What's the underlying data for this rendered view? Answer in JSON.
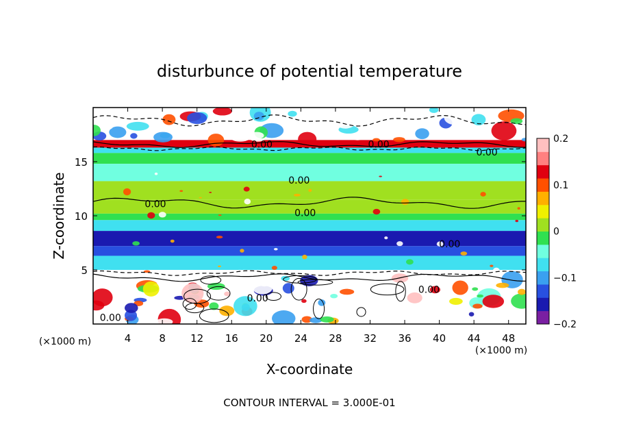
{
  "chart_data": {
    "type": "heatmap",
    "title": "disturbunce of potential temperature",
    "xlabel": "X-coordinate",
    "ylabel": "Z-coordinate",
    "x_unit_label": "(×1000 m)",
    "y_unit_label": "(×1000 m)",
    "xlim": [
      0,
      50
    ],
    "ylim": [
      0,
      20
    ],
    "x_ticks": [
      4,
      8,
      12,
      16,
      20,
      24,
      28,
      32,
      36,
      40,
      44,
      48
    ],
    "y_ticks": [
      5,
      10,
      15
    ],
    "colorbar": {
      "range": [
        -0.2,
        0.2
      ],
      "tick_labels": [
        {
          "value": 0.2,
          "label": "0.2"
        },
        {
          "value": 0.1,
          "label": "0.1"
        },
        {
          "value": 0.0,
          "label": "0"
        },
        {
          "value": -0.1,
          "label": "−0.1"
        },
        {
          "value": -0.2,
          "label": "−0.2"
        }
      ],
      "colors": [
        "#7a1fa2",
        "#1a1ab0",
        "#2850e0",
        "#3aa0f0",
        "#40e0f0",
        "#70ffe0",
        "#30e050",
        "#a0e020",
        "#f0f000",
        "#ffb000",
        "#ff5000",
        "#e00010",
        "#ff8080",
        "#ffc0c0"
      ]
    },
    "contour_labels": [
      {
        "x": 19.5,
        "y": 16.6,
        "label": "0.00"
      },
      {
        "x": 33.0,
        "y": 16.6,
        "label": "0.00"
      },
      {
        "x": 45.5,
        "y": 15.9,
        "label": "0.00"
      },
      {
        "x": 23.8,
        "y": 13.3,
        "label": "0.00"
      },
      {
        "x": 7.2,
        "y": 11.1,
        "label": "0.00"
      },
      {
        "x": 24.5,
        "y": 10.3,
        "label": "0.00"
      },
      {
        "x": 41.2,
        "y": 7.4,
        "label": "0.00"
      },
      {
        "x": 38.8,
        "y": 3.2,
        "label": "0.00"
      },
      {
        "x": 19.0,
        "y": 2.4,
        "label": "0.00"
      },
      {
        "x": 2.0,
        "y": 0.6,
        "label": "0.00"
      }
    ],
    "bands": [
      {
        "z": [
          19.5,
          20.0
        ],
        "value": 0.0
      },
      {
        "z": [
          17.0,
          19.5
        ],
        "value": 0.0
      },
      {
        "z": [
          16.3,
          17.0
        ],
        "value": 0.12
      },
      {
        "z": [
          15.8,
          16.3
        ],
        "value": -0.08
      },
      {
        "z": [
          14.8,
          15.8
        ],
        "value": -0.02
      },
      {
        "z": [
          13.2,
          14.8
        ],
        "value": -0.05
      },
      {
        "z": [
          11.5,
          13.2
        ],
        "value": 0.01
      },
      {
        "z": [
          10.2,
          11.5
        ],
        "value": 0.01
      },
      {
        "z": [
          9.6,
          10.2
        ],
        "value": -0.02
      },
      {
        "z": [
          8.6,
          9.6
        ],
        "value": -0.08
      },
      {
        "z": [
          7.2,
          8.6
        ],
        "value": -0.16
      },
      {
        "z": [
          6.3,
          7.2
        ],
        "value": -0.12
      },
      {
        "z": [
          5.0,
          6.3
        ],
        "value": -0.06
      },
      {
        "z": [
          4.5,
          5.0
        ],
        "value": 0.0
      },
      {
        "z": [
          0.0,
          4.5
        ],
        "value": 0.0
      }
    ],
    "footer": "CONTOUR INTERVAL = 3.000E-01"
  }
}
